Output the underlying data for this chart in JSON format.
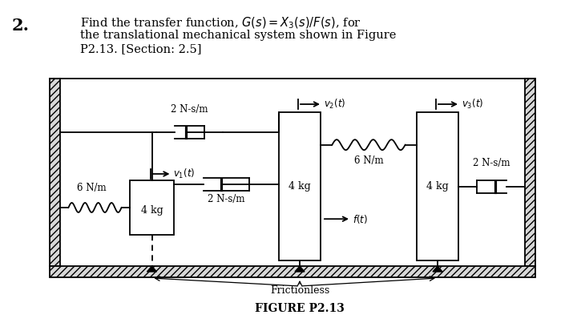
{
  "title_number": "2.",
  "title_text_line1": "Find the transfer function, $G(s) = X_3(s)/F(s)$, for",
  "title_text_line2": "the translational mechanical system shown in Figure",
  "title_text_line3": "P2.13. [Section: 2.5]",
  "figure_label": "FIGURE P2.13",
  "frictionless_label": "Frictionless",
  "bg_color": "#ffffff",
  "line_color": "#000000",
  "label_2Ns_top": "2 N-s/m",
  "label_6Nm_left": "6 N/m",
  "label_2Ns_mid": "2 N-s/m",
  "label_6Nm_right": "6 N/m",
  "label_2Ns_right": "2 N-s/m",
  "label_4kg_1": "4 kg",
  "label_4kg_2": "4 kg",
  "label_4kg_3": "4 kg",
  "label_v1": "$v_1(t)$",
  "label_v2": "$v_2(t)$",
  "label_v3": "$v_3(t)$",
  "label_ft": "$f(t)$"
}
